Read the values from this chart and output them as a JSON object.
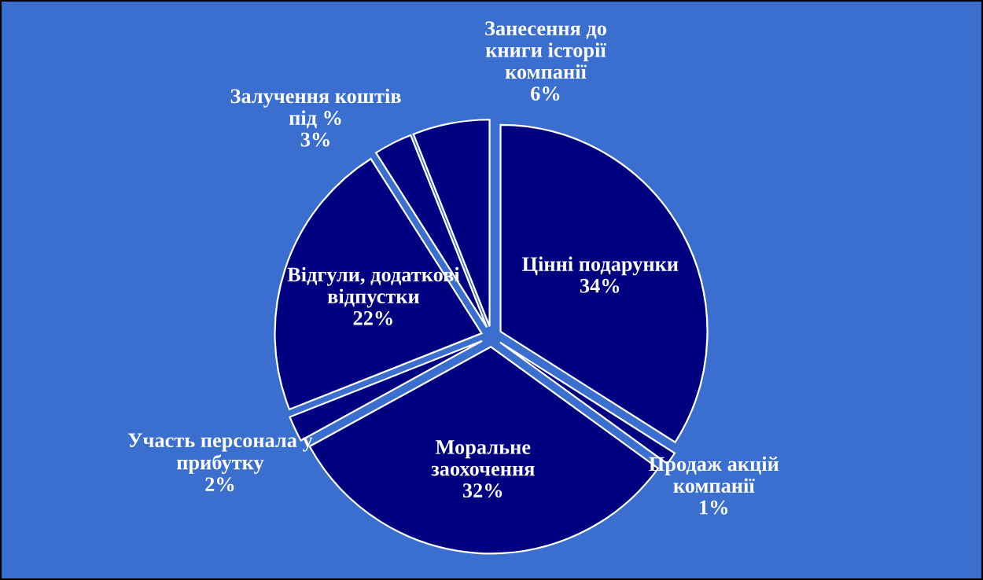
{
  "chart_data": {
    "type": "pie",
    "categories": [
      "Цінні подарунки",
      "Продаж акцій\nкомпанії",
      "Моральне\nзаохочення",
      "Участь персонала у\nприбутку",
      "Відгули, додаткові\nвідпустки",
      "Залучення коштів\nпід %",
      "Занесення до\nкниги історії\nкомпанії"
    ],
    "values": [
      34,
      1,
      32,
      2,
      22,
      3,
      6
    ],
    "value_labels": [
      "34%",
      "1%",
      "32%",
      "2%",
      "22%",
      "3%",
      "6%"
    ],
    "colors": [
      "#000080",
      "#000080",
      "#000080",
      "#000080",
      "#000080",
      "#000080",
      "#000080"
    ],
    "legend": false
  }
}
